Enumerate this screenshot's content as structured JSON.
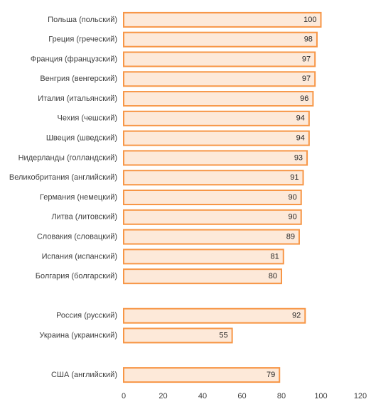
{
  "chart_data": {
    "type": "bar",
    "orientation": "horizontal",
    "categories": [
      "Польша (польский)",
      "Греция (греческий)",
      "Франция (французский)",
      "Венгрия (венгерский)",
      "Италия (итальянский)",
      "Чехия (чешский)",
      "Швеция (шведский)",
      "Нидерланды (голландский)",
      "Великобритания (английский)",
      "Германия (немецкий)",
      "Литва (литовский)",
      "Словакия (словацкий)",
      "Испания (испанский)",
      "Болгария (болгарский)",
      null,
      "Россия (русский)",
      "Украина (украинский)",
      null,
      "США (английский)"
    ],
    "values": [
      100,
      98,
      97,
      97,
      96,
      94,
      94,
      93,
      91,
      90,
      90,
      89,
      81,
      80,
      null,
      92,
      55,
      null,
      79
    ],
    "color": "#fde9d9",
    "edge_color": "#f79646",
    "xlim": [
      0,
      120
    ],
    "xticks": [
      0,
      20,
      40,
      60,
      80,
      100,
      120
    ],
    "grid": false
  }
}
